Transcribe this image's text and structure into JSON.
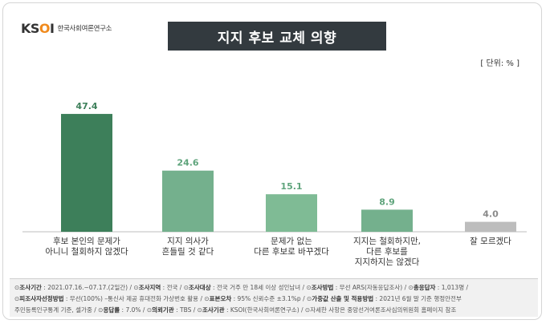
{
  "brand": {
    "logo_text": "KSOI",
    "org_name": "한국사회여론연구소"
  },
  "title": "지지 후보 교체 의향",
  "unit_label": "[ 단위: % ]",
  "colors": {
    "bar_dark": "#3d7f5a",
    "bar_mid": "#74b08d",
    "bar_light": "#7fbb95",
    "bar_gray": "#bdbdbd",
    "title_bg": "#333a3f",
    "accent": "#f08a1c"
  },
  "chart_data": {
    "type": "bar",
    "categories": [
      "후보 본인의 문제가\n아니니 철회하지 않겠다",
      "지지 의사가\n흔들릴 것 같다",
      "문제가 없는\n다른 후보로 바꾸겠다",
      "지지는 철회하지만,\n다른 후보를\n지지하지는 않겠다",
      "잘 모르겠다"
    ],
    "values": [
      47.4,
      24.6,
      15.1,
      8.9,
      4.0
    ],
    "value_labels": [
      "47.4",
      "24.6",
      "15.1",
      "8.9",
      "4.0"
    ],
    "bar_colors": [
      "#3d7f5a",
      "#74b08d",
      "#7fbb95",
      "#74b08d",
      "#bdbdbd"
    ],
    "title": "지지 후보 교체 의향",
    "xlabel": "",
    "ylabel": "",
    "ylim": [
      0,
      50
    ],
    "grid": false
  },
  "footer": {
    "line1": [
      {
        "label": "조사기간",
        "value": " : 2021.07.16.~07.17.(2일간)"
      },
      {
        "label": "조사지역",
        "value": " : 전국"
      },
      {
        "label": "조사대상",
        "value": " : 전국 거주 만 18세 이상 성인남녀"
      },
      {
        "label": "조사방법",
        "value": " : 무선 ARS(자동응답조사)"
      },
      {
        "label": "총응답자",
        "value": " : 1,013명"
      }
    ],
    "line2": [
      {
        "label": "피조사자선정방법",
        "value": " : 무선(100%) –통신사 제공 휴대전화 가상번호 활용"
      },
      {
        "label": "표본오차",
        "value": " : 95% 신뢰수준 ±3.1%p"
      },
      {
        "label": "가중값 산출 및 적용방법",
        "value": " : 2021년 6월 말 기준 행정안전부"
      }
    ],
    "line3_prefix": "주민등록인구통계 기준, 셀가중",
    "line3": [
      {
        "label": "응답률",
        "value": " : 7.0%"
      },
      {
        "label": "의뢰기관",
        "value": " : TBS"
      },
      {
        "label": "조사기관",
        "value": " : KSOI(한국사회여론연구소)"
      }
    ],
    "line3_note": "자세한 사항은 중앙선거여론조사심의위원회 홈페이지 참조"
  }
}
